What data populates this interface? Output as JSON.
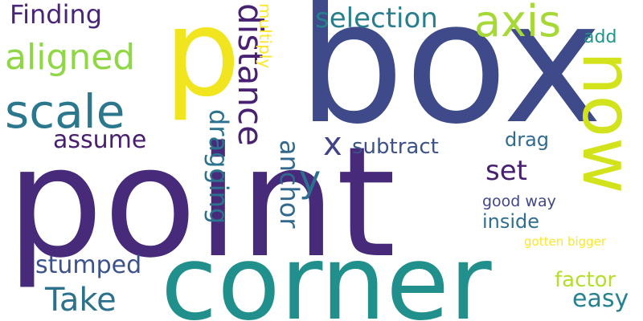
{
  "words": [
    {
      "text": "point",
      "color": "#472a7a",
      "orientation": "horizontal"
    },
    {
      "text": "box",
      "color": "#3e4a89",
      "orientation": "horizontal"
    },
    {
      "text": "corner",
      "color": "#21908d",
      "orientation": "horizontal"
    },
    {
      "text": "p",
      "color": "#f0e51f",
      "orientation": "horizontal"
    },
    {
      "text": "now",
      "color": "#d2e21b",
      "orientation": "vertical"
    },
    {
      "text": "scale",
      "color": "#2b778e",
      "orientation": "horizontal"
    },
    {
      "text": "axis",
      "color": "#a6d936",
      "orientation": "horizontal"
    },
    {
      "text": "aligned",
      "color": "#8fd744",
      "orientation": "horizontal"
    },
    {
      "text": "Finding",
      "color": "#482576",
      "orientation": "horizontal"
    },
    {
      "text": "selection",
      "color": "#277f8e",
      "orientation": "horizontal"
    },
    {
      "text": "distance",
      "color": "#482173",
      "orientation": "vertical"
    },
    {
      "text": "multiply",
      "color": "#fde725",
      "orientation": "vertical"
    },
    {
      "text": "dragging",
      "color": "#2c728e",
      "orientation": "vertical"
    },
    {
      "text": "anchor",
      "color": "#31688e",
      "orientation": "vertical"
    },
    {
      "text": "assume",
      "color": "#481f70",
      "orientation": "horizontal"
    },
    {
      "text": "x",
      "color": "#404387",
      "orientation": "horizontal"
    },
    {
      "text": "y",
      "color": "#2d6f8e",
      "orientation": "horizontal"
    },
    {
      "text": "subtract",
      "color": "#3b528b",
      "orientation": "horizontal"
    },
    {
      "text": "drag",
      "color": "#306a8e",
      "orientation": "horizontal"
    },
    {
      "text": "add",
      "color": "#1f958b",
      "orientation": "horizontal"
    },
    {
      "text": "set",
      "color": "#482071",
      "orientation": "horizontal"
    },
    {
      "text": "good way",
      "color": "#3f4788",
      "orientation": "horizontal"
    },
    {
      "text": "inside",
      "color": "#2e6e8e",
      "orientation": "horizontal"
    },
    {
      "text": "gotten bigger",
      "color": "#fde725",
      "orientation": "horizontal"
    },
    {
      "text": "stumped",
      "color": "#3b528b",
      "orientation": "horizontal"
    },
    {
      "text": "Take",
      "color": "#2c718e",
      "orientation": "horizontal"
    },
    {
      "text": "factor",
      "color": "#b5de2b",
      "orientation": "horizontal"
    },
    {
      "text": "easy",
      "color": "#26828e",
      "orientation": "horizontal"
    }
  ]
}
